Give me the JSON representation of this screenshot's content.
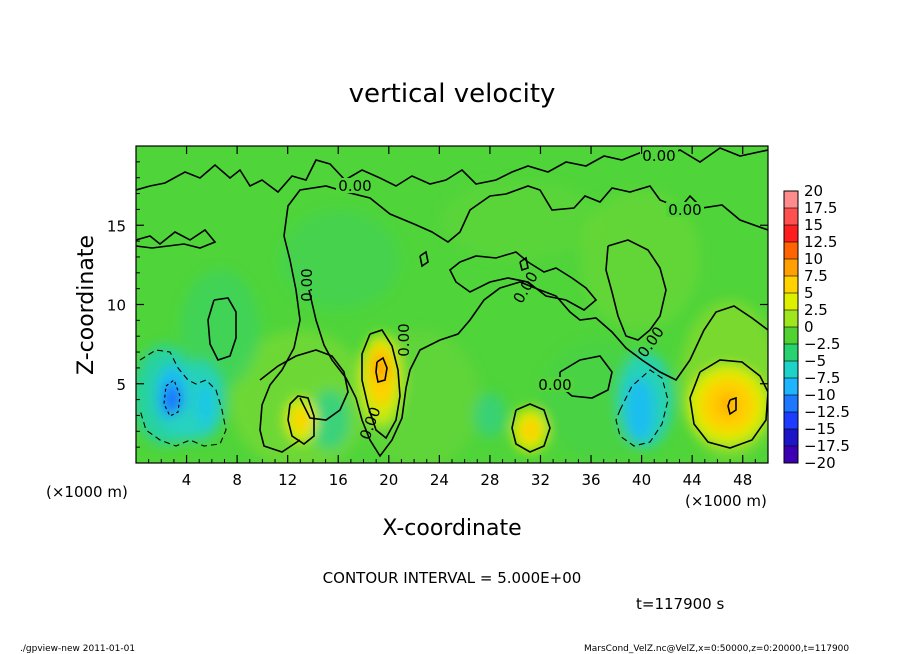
{
  "chart_data": {
    "type": "heatmap",
    "title": "vertical velocity",
    "xlabel": "X-coordinate",
    "ylabel": "Z-coordinate",
    "x_unit": "(×1000 m)",
    "y_unit": "(×1000 m)",
    "xlim": [
      0,
      50
    ],
    "ylim": [
      0,
      20
    ],
    "x_ticks": [
      4,
      8,
      12,
      16,
      20,
      24,
      28,
      32,
      36,
      40,
      44,
      48
    ],
    "y_ticks": [
      5,
      10,
      15
    ],
    "colorbar": {
      "levels": [
        "20",
        "17.5",
        "15",
        "12.5",
        "10",
        "7.5",
        "5",
        "2.5",
        "0",
        "−2.5",
        "−5",
        "−7.5",
        "−10",
        "−12.5",
        "−15",
        "−17.5",
        "−20"
      ],
      "colors": [
        "#ff8c8c",
        "#ff5050",
        "#ff1e1e",
        "#ff6400",
        "#ffa000",
        "#ffd200",
        "#dcf000",
        "#a0e61e",
        "#50d232",
        "#28d26e",
        "#1ed2c8",
        "#1eb4ff",
        "#1e78ff",
        "#1e3cff",
        "#1e14c8",
        "#3c00b4",
        "#7800b4"
      ]
    },
    "contour_labels": [
      "0.00",
      "0.00",
      "0.00",
      "0.00",
      "0.00",
      "0.00",
      "0.00",
      "0.00",
      "0.00"
    ],
    "features": [
      {
        "kind": "updraft",
        "x": 19.5,
        "z": 5.5,
        "peak": 10
      },
      {
        "kind": "updraft",
        "x": 46.5,
        "z": 3.5,
        "peak": 7
      },
      {
        "kind": "updraft",
        "x": 13,
        "z": 2.2,
        "peak": 5
      },
      {
        "kind": "updraft",
        "x": 31,
        "z": 2.0,
        "peak": 5
      },
      {
        "kind": "downdraft",
        "x": 3,
        "z": 3.5,
        "peak": -10
      },
      {
        "kind": "downdraft",
        "x": 6,
        "z": 3.5,
        "peak": -6
      },
      {
        "kind": "downdraft",
        "x": 39.5,
        "z": 3.0,
        "peak": -8
      }
    ]
  },
  "contour_interval": "CONTOUR INTERVAL = 5.000E+00",
  "time_label": "t=117900 s",
  "footer_left": "./gpview-new  2011-01-01",
  "footer_right": "MarsCond_VelZ.nc@VelZ,x=0:50000,z=0:20000,t=117900"
}
